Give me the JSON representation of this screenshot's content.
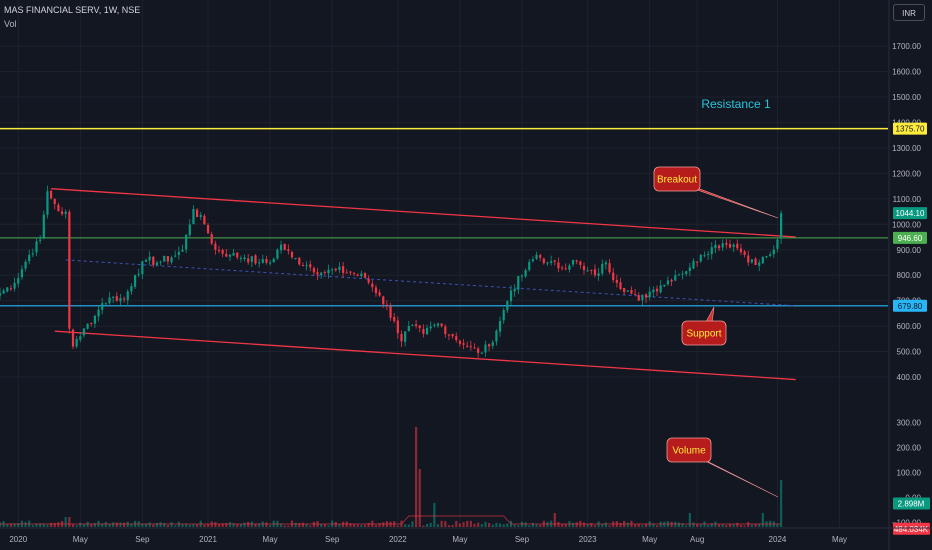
{
  "header": {
    "symbol_line": "MAS FINANCIAL SERV, 1W, NSE",
    "indicator": "Vol",
    "currency": "INR"
  },
  "chart_data": {
    "type": "candlestick",
    "price_axis": {
      "ylim": [
        380,
        1820
      ],
      "ticks": [
        "1700.00",
        "1600.00",
        "1500.00",
        "1400.00",
        "1300.00",
        "1200.00",
        "1100.00",
        "1000.00",
        "900.00",
        "800.00",
        "700.00",
        "600.00",
        "500.00",
        "400.00"
      ],
      "tick_values": [
        1700,
        1600,
        1500,
        1400,
        1300,
        1200,
        1100,
        1000,
        900,
        800,
        700,
        600,
        500,
        400
      ]
    },
    "volume_axis": {
      "ticks": [
        "300.00",
        "200.00",
        "100.00",
        "0.00",
        "−100.00"
      ],
      "tick_values": [
        300,
        200,
        100,
        0,
        -100
      ]
    },
    "time_axis": {
      "labels": [
        "2020",
        "May",
        "Sep",
        "2021",
        "May",
        "Sep",
        "2022",
        "May",
        "Sep",
        "2023",
        "May",
        "Aug",
        "2024",
        "May"
      ],
      "label_weeks": [
        5,
        22,
        39,
        57,
        74,
        91,
        109,
        126,
        143,
        161,
        178,
        191,
        213,
        230
      ]
    },
    "price_tags": [
      {
        "label": "1375.70",
        "value": 1375.7,
        "color": "#ffeb3b",
        "text_color": "#131722"
      },
      {
        "label": "1044.10",
        "value": 1044.1,
        "color": "#089981",
        "text_color": "#ffffff"
      },
      {
        "label": "946.60",
        "value": 946.6,
        "color": "#4caf50",
        "text_color": "#ffffff"
      },
      {
        "label": "679.80",
        "value": 679.8,
        "color": "#29b6f6",
        "text_color": "#131722"
      }
    ],
    "volume_tags": [
      {
        "label": "2.898M",
        "color": "#089981"
      },
      {
        "label": "484.034K",
        "color": "#f23645"
      }
    ],
    "annotations": {
      "resistance": "Resistance 1",
      "breakout": "Breakout",
      "support": "Support",
      "volume": "Volume"
    },
    "anchors": [
      {
        "week": 0,
        "price": 730
      },
      {
        "week": 4,
        "price": 770
      },
      {
        "week": 8,
        "price": 880
      },
      {
        "week": 11,
        "price": 940
      },
      {
        "week": 13,
        "price": 1130
      },
      {
        "week": 15,
        "price": 1080
      },
      {
        "week": 17,
        "price": 1040
      },
      {
        "week": 18,
        "price": 1050
      },
      {
        "week": 19,
        "price": 590
      },
      {
        "week": 20,
        "price": 520
      },
      {
        "week": 22,
        "price": 560
      },
      {
        "week": 24,
        "price": 610
      },
      {
        "week": 26,
        "price": 640
      },
      {
        "week": 28,
        "price": 690
      },
      {
        "week": 31,
        "price": 715
      },
      {
        "week": 34,
        "price": 705
      },
      {
        "week": 37,
        "price": 800
      },
      {
        "week": 40,
        "price": 860
      },
      {
        "week": 43,
        "price": 850
      },
      {
        "week": 47,
        "price": 870
      },
      {
        "week": 50,
        "price": 900
      },
      {
        "week": 53,
        "price": 1060
      },
      {
        "week": 56,
        "price": 1000
      },
      {
        "week": 59,
        "price": 900
      },
      {
        "week": 63,
        "price": 880
      },
      {
        "week": 67,
        "price": 870
      },
      {
        "week": 71,
        "price": 850
      },
      {
        "week": 74,
        "price": 850
      },
      {
        "week": 77,
        "price": 920
      },
      {
        "week": 80,
        "price": 870
      },
      {
        "week": 84,
        "price": 840
      },
      {
        "week": 88,
        "price": 810
      },
      {
        "week": 92,
        "price": 820
      },
      {
        "week": 96,
        "price": 810
      },
      {
        "week": 100,
        "price": 790
      },
      {
        "week": 104,
        "price": 720
      },
      {
        "week": 108,
        "price": 620
      },
      {
        "week": 110,
        "price": 540
      },
      {
        "week": 112,
        "price": 600
      },
      {
        "week": 116,
        "price": 570
      },
      {
        "week": 120,
        "price": 610
      },
      {
        "week": 124,
        "price": 560
      },
      {
        "week": 128,
        "price": 520
      },
      {
        "week": 131,
        "price": 495
      },
      {
        "week": 134,
        "price": 520
      },
      {
        "week": 137,
        "price": 620
      },
      {
        "week": 140,
        "price": 740
      },
      {
        "week": 144,
        "price": 820
      },
      {
        "week": 147,
        "price": 880
      },
      {
        "week": 150,
        "price": 850
      },
      {
        "week": 154,
        "price": 830
      },
      {
        "week": 157,
        "price": 860
      },
      {
        "week": 160,
        "price": 820
      },
      {
        "week": 163,
        "price": 800
      },
      {
        "week": 166,
        "price": 850
      },
      {
        "week": 169,
        "price": 770
      },
      {
        "week": 172,
        "price": 740
      },
      {
        "week": 175,
        "price": 700
      },
      {
        "week": 178,
        "price": 735
      },
      {
        "week": 181,
        "price": 760
      },
      {
        "week": 185,
        "price": 800
      },
      {
        "week": 189,
        "price": 830
      },
      {
        "week": 192,
        "price": 880
      },
      {
        "week": 195,
        "price": 910
      },
      {
        "week": 198,
        "price": 925
      },
      {
        "week": 201,
        "price": 920
      },
      {
        "week": 204,
        "price": 880
      },
      {
        "week": 207,
        "price": 840
      },
      {
        "week": 210,
        "price": 875
      },
      {
        "week": 212,
        "price": 900
      },
      {
        "week": 213,
        "price": 940
      },
      {
        "week": 214,
        "price": 1044
      }
    ]
  }
}
